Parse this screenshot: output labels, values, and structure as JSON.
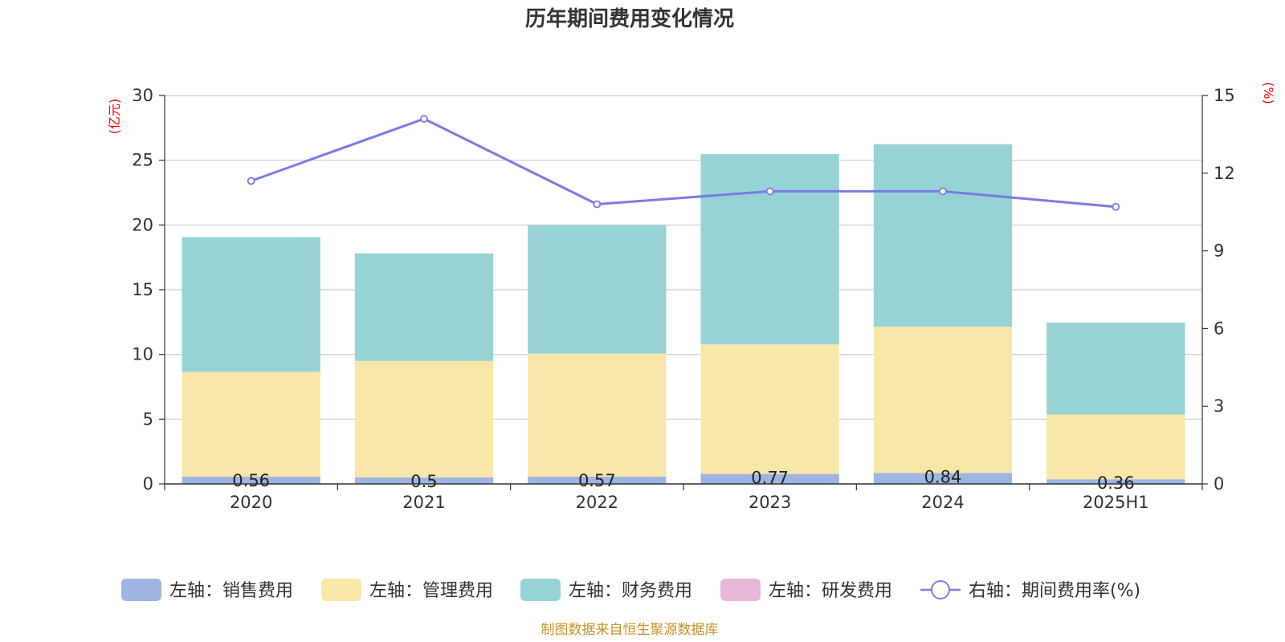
{
  "chart_data": {
    "type": "bar",
    "title": "历年期间费用变化情况",
    "categories": [
      "2020",
      "2021",
      "2022",
      "2023",
      "2024",
      "2025H1"
    ],
    "left_axis": {
      "unit": "(亿元)",
      "ylim": [
        0,
        30
      ],
      "ticks": [
        "0",
        "5",
        "10",
        "15",
        "20",
        "25",
        "30"
      ]
    },
    "right_axis": {
      "unit": "(%)",
      "ylim": [
        0,
        15
      ],
      "ticks": [
        "0",
        "3",
        "6",
        "9",
        "12",
        "15"
      ]
    },
    "series": [
      {
        "name": "左轴：销售费用",
        "color": "#9db5e0",
        "type": "bar",
        "axis": "left",
        "values": [
          0.56,
          0.5,
          0.57,
          0.77,
          0.84,
          0.36
        ],
        "labels": [
          "0.56",
          "0.5",
          "0.57",
          "0.77",
          "0.84",
          "0.36"
        ]
      },
      {
        "name": "左轴：管理费用",
        "color": "#f8e7a8",
        "type": "bar",
        "axis": "left",
        "values": [
          8.1,
          9.0,
          9.5,
          10.0,
          11.3,
          5.0
        ]
      },
      {
        "name": "左轴：财务费用",
        "color": "#97d3d4",
        "type": "bar",
        "axis": "left",
        "values": [
          10.4,
          8.3,
          9.9,
          14.7,
          14.1,
          7.1
        ]
      },
      {
        "name": "左轴：研发费用",
        "color": "#e8b8d8",
        "type": "bar",
        "axis": "left",
        "values": [
          0,
          0,
          0,
          0,
          0,
          0
        ]
      },
      {
        "name": "右轴：期间费用率(%)",
        "color": "#7a7ae8",
        "type": "line",
        "axis": "right",
        "values": [
          11.7,
          14.1,
          10.8,
          11.3,
          11.3,
          10.7
        ]
      }
    ],
    "source": "制图数据来自恒生聚源数据库"
  }
}
